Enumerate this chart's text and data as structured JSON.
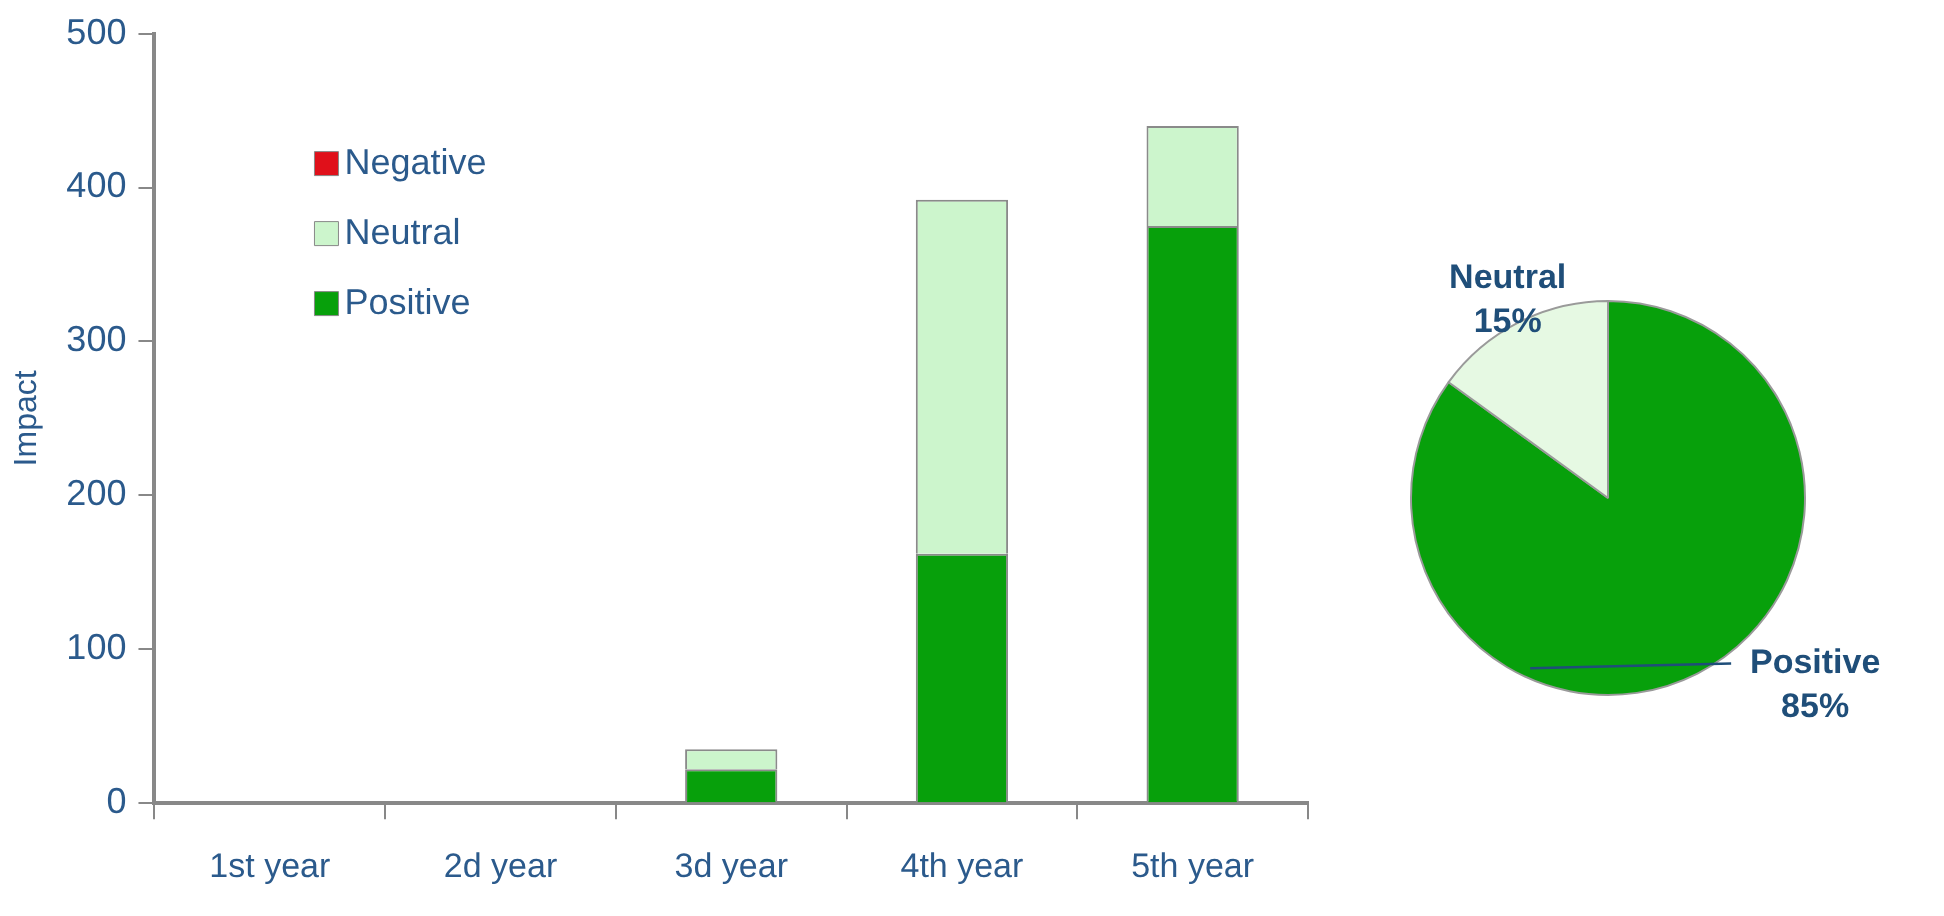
{
  "chart_data": [
    {
      "type": "bar",
      "ylabel": "Impact",
      "categories": [
        "1st year",
        "2d year",
        "3d year",
        "4th year",
        "5th year"
      ],
      "stacked": true,
      "ylim": [
        0,
        500
      ],
      "yticks": [
        0,
        100,
        200,
        300,
        400,
        500
      ],
      "grid": false,
      "legend": "top left",
      "series": [
        {
          "name": "Positive",
          "color": "#07a00b",
          "values": [
            0,
            0,
            22,
            162,
            375
          ]
        },
        {
          "name": "Neutral",
          "color": "#ccf5cc",
          "values": [
            0,
            0,
            13,
            230,
            65
          ]
        },
        {
          "name": "Negative",
          "color": "#e0101a",
          "values": [
            0,
            0,
            0,
            0,
            0
          ]
        }
      ]
    },
    {
      "type": "pie",
      "categories": [
        "Positive",
        "Neutral"
      ],
      "values": [
        85,
        15
      ],
      "colors": [
        "#07a00b",
        "#e6f9e3"
      ],
      "value_labels": [
        "85%",
        "15%"
      ]
    }
  ]
}
